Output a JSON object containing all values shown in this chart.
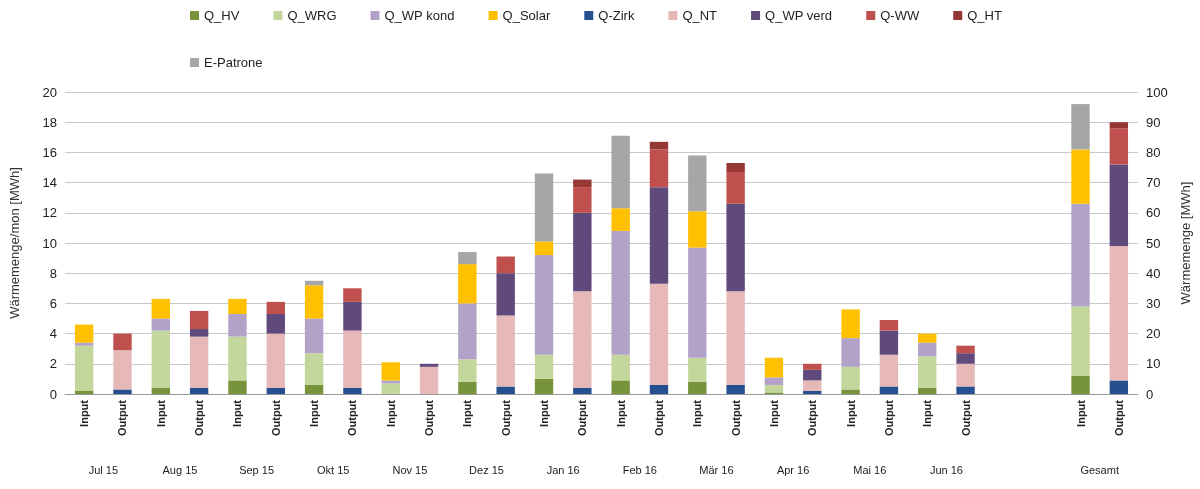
{
  "chart_data": {
    "type": "bar",
    "stacked": true,
    "ylabel": "Wärmemenge/mon [MWh]",
    "y2label": "Wärmemenge [MWh]",
    "categories": [
      "Input",
      "Output",
      "Input",
      "Output",
      "Input",
      "Output",
      "Input",
      "Output",
      "Input",
      "Output",
      "Input",
      "Output",
      "Input",
      "Output",
      "Input",
      "Output",
      "Input",
      "Output",
      "Input",
      "Output",
      "Input",
      "Output",
      "Input",
      "Output",
      null,
      null,
      "Input",
      "Output"
    ],
    "annotations": [
      "Jul 15",
      "Aug 15",
      "Sep 15",
      "Okt 15",
      "Nov 15",
      "Dez 15",
      "Jan 16",
      "Feb 16",
      "Mär 16",
      "Apr 16",
      "Mai 16",
      "Jun 16",
      "Gesamt"
    ],
    "ylim": [
      0,
      20
    ],
    "yticks": [
      0,
      2,
      4,
      6,
      8,
      10,
      12,
      14,
      16,
      18,
      20
    ],
    "y2lim": [
      0,
      100
    ],
    "y2ticks": [
      0,
      10,
      20,
      30,
      40,
      50,
      60,
      70,
      80,
      90,
      100
    ],
    "grid": "y",
    "legend": "top",
    "series": [
      {
        "name": "Q_HV",
        "color": "#77933c",
        "values": [
          0.2,
          null,
          0.4,
          null,
          0.9,
          null,
          0.6,
          null,
          0,
          null,
          0.8,
          null,
          1.0,
          null,
          0.9,
          null,
          0.8,
          null,
          0.1,
          null,
          0.3,
          null,
          0.4,
          null,
          null,
          null,
          null,
          null
        ]
      },
      {
        "name": "Q_WRG",
        "color": "#c3d69b",
        "values": [
          3.0,
          null,
          3.8,
          null,
          2.9,
          null,
          2.1,
          null,
          0.7,
          null,
          1.5,
          null,
          1.6,
          null,
          1.7,
          null,
          1.6,
          null,
          0.5,
          null,
          1.5,
          null,
          2.1,
          null,
          null,
          null,
          null,
          null
        ]
      },
      {
        "name": "Q_WP kond",
        "color": "#b3a2c7",
        "values": [
          0.2,
          null,
          0.8,
          null,
          1.5,
          null,
          2.3,
          null,
          0.2,
          null,
          3.7,
          null,
          6.6,
          null,
          8.2,
          null,
          7.3,
          null,
          0.5,
          null,
          1.9,
          null,
          0.9,
          null,
          null,
          null,
          null,
          null
        ]
      },
      {
        "name": "Q_Solar",
        "color": "#ffc000",
        "values": [
          1.2,
          null,
          1.3,
          null,
          1.0,
          null,
          2.2,
          null,
          1.2,
          null,
          2.6,
          null,
          0.9,
          null,
          1.5,
          null,
          2.4,
          null,
          1.3,
          null,
          1.9,
          null,
          0.6,
          null,
          null,
          null,
          null,
          null
        ]
      },
      {
        "name": "Q-Zirk",
        "color": "#254f8f",
        "values": [
          null,
          0.3,
          null,
          0.4,
          null,
          0.4,
          null,
          0.4,
          null,
          0,
          null,
          0.5,
          null,
          0.4,
          null,
          0.6,
          null,
          0.6,
          null,
          0.2,
          null,
          0.5,
          null,
          0.5,
          null,
          null,
          null,
          null
        ]
      },
      {
        "name": "Q_NT",
        "color": "#e6b9b8",
        "values": [
          null,
          2.6,
          null,
          3.4,
          null,
          3.6,
          null,
          3.8,
          null,
          1.8,
          null,
          4.7,
          null,
          6.4,
          null,
          6.7,
          null,
          6.2,
          null,
          0.7,
          null,
          2.1,
          null,
          1.5,
          null,
          null,
          null,
          null
        ]
      },
      {
        "name": "Q_WP verd",
        "color": "#604a7b",
        "values": [
          null,
          0,
          null,
          0.5,
          null,
          1.3,
          null,
          1.9,
          null,
          0.2,
          null,
          2.8,
          null,
          5.2,
          null,
          6.4,
          null,
          5.8,
          null,
          0.7,
          null,
          1.6,
          null,
          0.7,
          null,
          null,
          null,
          null
        ]
      },
      {
        "name": "Q-WW",
        "color": "#c0504d",
        "values": [
          null,
          1.1,
          null,
          1.2,
          null,
          0.8,
          null,
          0.9,
          null,
          0,
          null,
          1.1,
          null,
          1.7,
          null,
          2.5,
          null,
          2.1,
          null,
          0.4,
          null,
          0.7,
          null,
          0.5,
          null,
          null,
          null,
          null
        ]
      },
      {
        "name": "Q_HT",
        "color": "#953735",
        "values": [
          null,
          0,
          null,
          0,
          null,
          0,
          null,
          0,
          null,
          0,
          null,
          0,
          null,
          0.5,
          null,
          0.5,
          null,
          0.6,
          null,
          0,
          null,
          0,
          null,
          0,
          null,
          null,
          null,
          null
        ]
      },
      {
        "name": "E-Patrone",
        "color": "#a6a6a6",
        "values": [
          0,
          null,
          0,
          null,
          0,
          null,
          0.3,
          null,
          0,
          null,
          0.8,
          null,
          4.5,
          null,
          4.8,
          null,
          3.7,
          null,
          0,
          null,
          0,
          null,
          0,
          null,
          null,
          null,
          null,
          null
        ]
      },
      {
        "axis": "y2",
        "color": "#77933c",
        "values": [
          null,
          null,
          null,
          null,
          null,
          null,
          null,
          null,
          null,
          null,
          null,
          null,
          null,
          null,
          null,
          null,
          null,
          null,
          null,
          null,
          null,
          null,
          null,
          null,
          null,
          null,
          6,
          null
        ]
      },
      {
        "axis": "y2",
        "color": "#c3d69b",
        "values": [
          null,
          null,
          null,
          null,
          null,
          null,
          null,
          null,
          null,
          null,
          null,
          null,
          null,
          null,
          null,
          null,
          null,
          null,
          null,
          null,
          null,
          null,
          null,
          null,
          null,
          null,
          23,
          null
        ]
      },
      {
        "axis": "y2",
        "color": "#b3a2c7",
        "values": [
          null,
          null,
          null,
          null,
          null,
          null,
          null,
          null,
          null,
          null,
          null,
          null,
          null,
          null,
          null,
          null,
          null,
          null,
          null,
          null,
          null,
          null,
          null,
          null,
          null,
          null,
          34,
          null
        ]
      },
      {
        "axis": "y2",
        "color": "#ffc000",
        "values": [
          null,
          null,
          null,
          null,
          null,
          null,
          null,
          null,
          null,
          null,
          null,
          null,
          null,
          null,
          null,
          null,
          null,
          null,
          null,
          null,
          null,
          null,
          null,
          null,
          null,
          null,
          18,
          null
        ]
      },
      {
        "axis": "y2",
        "color": "#254f8f",
        "values": [
          null,
          null,
          null,
          null,
          null,
          null,
          null,
          null,
          null,
          null,
          null,
          null,
          null,
          null,
          null,
          null,
          null,
          null,
          null,
          null,
          null,
          null,
          null,
          null,
          null,
          null,
          null,
          4.5
        ]
      },
      {
        "axis": "y2",
        "color": "#e6b9b8",
        "values": [
          null,
          null,
          null,
          null,
          null,
          null,
          null,
          null,
          null,
          null,
          null,
          null,
          null,
          null,
          null,
          null,
          null,
          null,
          null,
          null,
          null,
          null,
          null,
          null,
          null,
          null,
          null,
          44.5
        ]
      },
      {
        "axis": "y2",
        "color": "#604a7b",
        "values": [
          null,
          null,
          null,
          null,
          null,
          null,
          null,
          null,
          null,
          null,
          null,
          null,
          null,
          null,
          null,
          null,
          null,
          null,
          null,
          null,
          null,
          null,
          null,
          null,
          null,
          null,
          null,
          27
        ]
      },
      {
        "axis": "y2",
        "color": "#c0504d",
        "values": [
          null,
          null,
          null,
          null,
          null,
          null,
          null,
          null,
          null,
          null,
          null,
          null,
          null,
          null,
          null,
          null,
          null,
          null,
          null,
          null,
          null,
          null,
          null,
          null,
          null,
          null,
          null,
          12
        ]
      },
      {
        "axis": "y2",
        "color": "#953735",
        "values": [
          null,
          null,
          null,
          null,
          null,
          null,
          null,
          null,
          null,
          null,
          null,
          null,
          null,
          null,
          null,
          null,
          null,
          null,
          null,
          null,
          null,
          null,
          null,
          null,
          null,
          null,
          null,
          2
        ]
      },
      {
        "axis": "y2",
        "color": "#a6a6a6",
        "values": [
          null,
          null,
          null,
          null,
          null,
          null,
          null,
          null,
          null,
          null,
          null,
          null,
          null,
          null,
          null,
          null,
          null,
          null,
          null,
          null,
          null,
          null,
          null,
          null,
          null,
          null,
          15,
          null
        ]
      }
    ]
  }
}
